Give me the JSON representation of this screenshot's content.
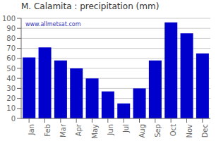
{
  "chart_data": {
    "type": "bar",
    "title": "M. Calamita : precipitation (mm)",
    "categories": [
      "Jan",
      "Feb",
      "Mar",
      "Apr",
      "May",
      "Jun",
      "Jul",
      "Aug",
      "Sep",
      "Oct",
      "Nov",
      "Dec"
    ],
    "values": [
      61,
      71,
      58,
      50,
      40,
      27,
      15,
      30,
      58,
      96,
      85,
      65
    ],
    "color": "#0000cc",
    "ylim": [
      0,
      100
    ],
    "yticks": [
      0,
      10,
      20,
      30,
      40,
      50,
      60,
      70,
      80,
      90,
      100
    ],
    "grid": true,
    "annotations": [
      "www.allmetsat.com"
    ]
  }
}
